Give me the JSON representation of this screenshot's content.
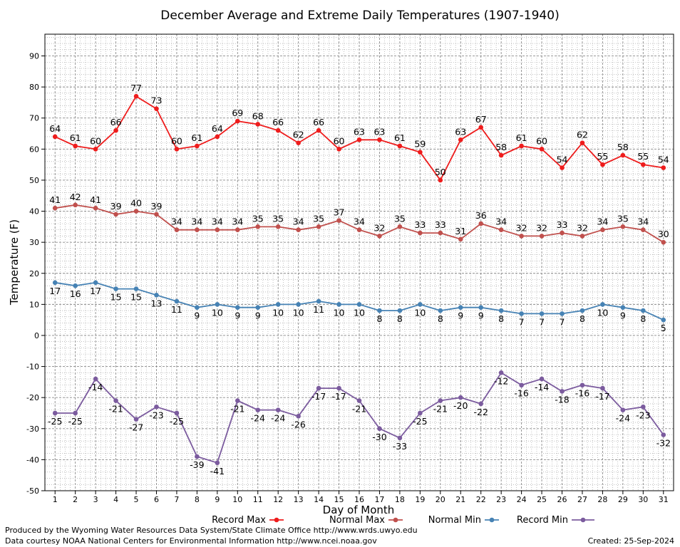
{
  "colors": {
    "record_max": "#ee1c1c",
    "normal_max": "#c0504d",
    "normal_min": "#4682b4",
    "record_min": "#7b5b9e",
    "grid": "#9a9a9a",
    "plot_bg": "#ffffff"
  },
  "footer": {
    "left_line1": "Produced by the Wyoming Water Resources Data System/State Climate Office http://www.wrds.uwyo.edu",
    "left_line2": "Data courtesy NOAA National Centers for Environmental Information http://www.ncei.noaa.gov",
    "created": "Created:  25-Sep-2024"
  },
  "chart_data": {
    "type": "line",
    "title": "December Average and Extreme Daily Temperatures (1907-1940)",
    "xlabel": "Day of Month",
    "ylabel": "Temperature (F)",
    "x": [
      1,
      2,
      3,
      4,
      5,
      6,
      7,
      8,
      9,
      10,
      11,
      12,
      13,
      14,
      15,
      16,
      17,
      18,
      19,
      20,
      21,
      22,
      23,
      24,
      25,
      26,
      27,
      28,
      29,
      30,
      31
    ],
    "xlim": [
      0.5,
      31.5
    ],
    "ylim": [
      -50,
      97
    ],
    "yticks": [
      -50,
      -40,
      -30,
      -20,
      -10,
      0,
      10,
      20,
      30,
      40,
      50,
      60,
      70,
      80,
      90
    ],
    "grid": true,
    "legend_position": "bottom",
    "series": [
      {
        "name": "Record Max",
        "color_key": "record_max",
        "label_position": "above",
        "values": [
          64,
          61,
          60,
          66,
          77,
          73,
          60,
          61,
          64,
          69,
          68,
          66,
          62,
          66,
          60,
          63,
          63,
          61,
          59,
          50,
          63,
          67,
          58,
          61,
          60,
          54,
          62,
          55,
          58,
          55,
          54
        ]
      },
      {
        "name": "Normal Max",
        "color_key": "normal_max",
        "label_position": "above",
        "values": [
          41,
          42,
          41,
          39,
          40,
          39,
          34,
          34,
          34,
          34,
          35,
          35,
          34,
          35,
          37,
          34,
          32,
          35,
          33,
          33,
          31,
          36,
          34,
          32,
          32,
          33,
          32,
          34,
          35,
          34,
          30
        ]
      },
      {
        "name": "Normal Min",
        "color_key": "normal_min",
        "label_position": "below",
        "values": [
          17,
          16,
          17,
          15,
          15,
          13,
          11,
          9,
          10,
          9,
          9,
          10,
          10,
          11,
          10,
          10,
          8,
          8,
          10,
          8,
          9,
          9,
          8,
          7,
          7,
          7,
          8,
          10,
          9,
          8,
          5
        ]
      },
      {
        "name": "Record Min",
        "color_key": "record_min",
        "label_position": "below",
        "values": [
          -25,
          -25,
          -14,
          -21,
          -27,
          -23,
          -25,
          -39,
          -41,
          -21,
          -24,
          -24,
          -26,
          -17,
          -17,
          -21,
          -30,
          -33,
          -25,
          -21,
          -20,
          -22,
          -12,
          -16,
          -14,
          -18,
          -16,
          -17,
          -24,
          -23,
          -32
        ]
      }
    ]
  }
}
